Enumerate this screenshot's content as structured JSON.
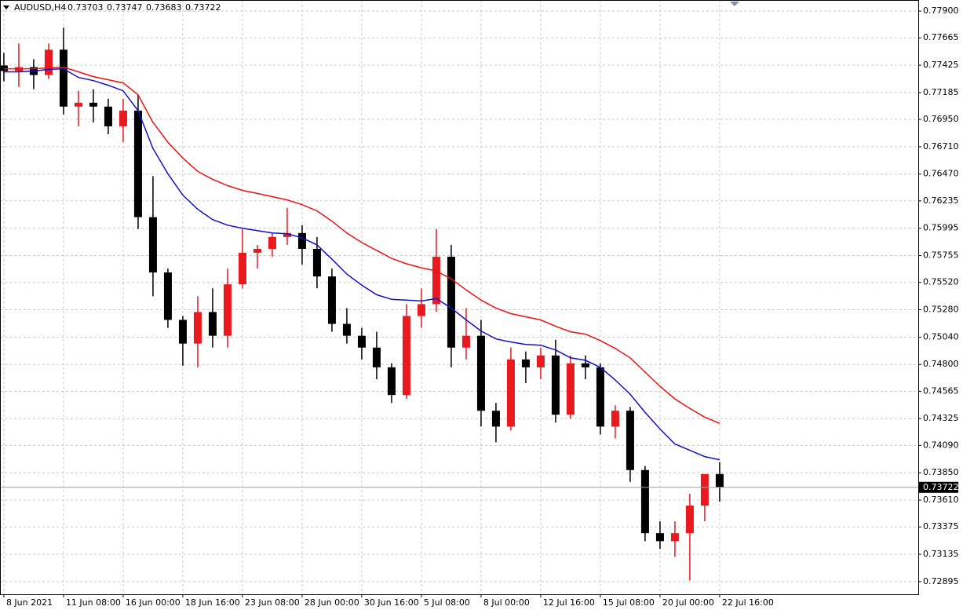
{
  "chart_data": {
    "type": "candlestick",
    "title": "AUDUSD,H4",
    "header_values": [
      0.73703,
      0.73747,
      0.73683,
      0.73722
    ],
    "x": [
      0,
      1,
      2,
      3,
      4,
      5,
      6,
      7,
      8,
      9,
      10,
      11,
      12,
      13,
      14,
      15,
      16,
      17,
      18,
      19,
      20,
      21,
      22,
      23,
      24,
      25,
      26,
      27,
      28,
      29,
      30,
      31,
      32,
      33,
      34,
      35,
      36,
      37,
      38,
      39,
      40,
      41,
      42,
      43,
      44,
      45,
      46,
      47,
      48
    ],
    "open": [
      0.77422,
      0.77374,
      0.77408,
      0.77339,
      0.77561,
      0.77062,
      0.77096,
      0.77062,
      0.76889,
      0.77027,
      0.76092,
      0.75607,
      0.75191,
      0.74983,
      0.7526,
      0.75052,
      0.75503,
      0.7578,
      0.75814,
      0.75918,
      0.75953,
      0.75814,
      0.75572,
      0.75156,
      0.75052,
      0.74948,
      0.74775,
      0.74532,
      0.75225,
      0.75329,
      0.75745,
      0.74948,
      0.75052,
      0.74394,
      0.74255,
      0.74844,
      0.74775,
      0.74879,
      0.74359,
      0.7481,
      0.74775,
      0.74255,
      0.74394,
      0.73874,
      0.7332,
      0.7325,
      0.7332,
      0.73562,
      0.73839
    ],
    "high": [
      0.77533,
      0.77616,
      0.77478,
      0.77616,
      0.77755,
      0.772,
      0.77214,
      0.77131,
      0.77131,
      0.77166,
      0.76452,
      0.75641,
      0.75225,
      0.75399,
      0.75468,
      0.75641,
      0.75988,
      0.75849,
      0.75953,
      0.76175,
      0.76022,
      0.75918,
      0.75641,
      0.75295,
      0.75121,
      0.75087,
      0.7481,
      0.75329,
      0.75468,
      0.75988,
      0.75849,
      0.75295,
      0.75191,
      0.74463,
      0.74948,
      0.74914,
      0.74948,
      0.75017,
      0.74879,
      0.74879,
      0.7481,
      0.74442,
      0.74428,
      0.73909,
      0.73424,
      0.73424,
      0.73666,
      0.73839,
      0.73943
    ],
    "low": [
      0.77284,
      0.77235,
      0.77214,
      0.77304,
      0.76993,
      0.76889,
      0.76923,
      0.76819,
      0.7675,
      0.75988,
      0.75399,
      0.75121,
      0.74789,
      0.74775,
      0.74948,
      0.74948,
      0.75468,
      0.75641,
      0.75745,
      0.75849,
      0.75676,
      0.75468,
      0.75087,
      0.74983,
      0.74844,
      0.74671,
      0.74463,
      0.74498,
      0.75121,
      0.7526,
      0.74775,
      0.74844,
      0.74255,
      0.74117,
      0.74221,
      0.74636,
      0.74671,
      0.7429,
      0.74324,
      0.74671,
      0.74186,
      0.74151,
      0.7377,
      0.7325,
      0.73181,
      0.73112,
      0.72904,
      0.73424,
      0.73597
    ],
    "close": [
      0.77374,
      0.77408,
      0.77339,
      0.77561,
      0.77062,
      0.77096,
      0.77062,
      0.76889,
      0.77027,
      0.76092,
      0.75607,
      0.75191,
      0.74983,
      0.7526,
      0.75052,
      0.75503,
      0.7578,
      0.75814,
      0.75918,
      0.75953,
      0.75814,
      0.75572,
      0.75156,
      0.75052,
      0.74948,
      0.74775,
      0.74532,
      0.75225,
      0.75329,
      0.75745,
      0.74948,
      0.75052,
      0.74394,
      0.74255,
      0.74844,
      0.74775,
      0.74879,
      0.74359,
      0.7481,
      0.74775,
      0.74255,
      0.74394,
      0.73874,
      0.7332,
      0.7325,
      0.7332,
      0.73562,
      0.73839,
      0.73722
    ],
    "up_color": "#e8191f",
    "down_color": "#000000",
    "indicators": [
      {
        "color": "#ee1111",
        "values": [
          0.77394,
          0.77394,
          0.77394,
          0.77401,
          0.77408,
          0.77367,
          0.77325,
          0.77297,
          0.7727,
          0.77166,
          0.76923,
          0.7675,
          0.76611,
          0.76494,
          0.76424,
          0.76369,
          0.76327,
          0.763,
          0.76272,
          0.76244,
          0.76202,
          0.76147,
          0.76057,
          0.75953,
          0.7587,
          0.75801,
          0.75731,
          0.75683,
          0.75648,
          0.7562,
          0.75551,
          0.75454,
          0.75364,
          0.75295,
          0.75246,
          0.75218,
          0.75191,
          0.75135,
          0.75087,
          0.75066,
          0.7501,
          0.74941,
          0.74858,
          0.74733,
          0.74609,
          0.74498,
          0.74415,
          0.74338,
          0.74283
        ]
      },
      {
        "color": "#1111cc",
        "values": [
          0.77367,
          0.77367,
          0.77374,
          0.77388,
          0.77394,
          0.77318,
          0.7729,
          0.77249,
          0.772,
          0.77027,
          0.76695,
          0.76473,
          0.76286,
          0.76161,
          0.76071,
          0.76022,
          0.75995,
          0.75974,
          0.75953,
          0.75946,
          0.75911,
          0.75849,
          0.75724,
          0.75593,
          0.75496,
          0.75412,
          0.75371,
          0.75364,
          0.75357,
          0.75378,
          0.75295,
          0.75191,
          0.75094,
          0.75024,
          0.74997,
          0.74976,
          0.74969,
          0.74927,
          0.74858,
          0.74837,
          0.74775,
          0.74664,
          0.74539,
          0.7438,
          0.74234,
          0.74103,
          0.74047,
          0.73992,
          0.73964
        ]
      }
    ],
    "last_price": 0.73722,
    "xlim": [
      -0.26,
      61.32
    ],
    "xticks": [
      {
        "value": 0,
        "label": "8 Jun 2021"
      },
      {
        "value": 4,
        "label": "11 Jun 08:00"
      },
      {
        "value": 8,
        "label": "16 Jun 00:00"
      },
      {
        "value": 12,
        "label": "18 Jun 16:00"
      },
      {
        "value": 16,
        "label": "23 Jun 08:00"
      },
      {
        "value": 20,
        "label": "28 Jun 00:00"
      },
      {
        "value": 24,
        "label": "30 Jun 16:00"
      },
      {
        "value": 28,
        "label": "5 Jul 08:00"
      },
      {
        "value": 32,
        "label": "8 Jul 00:00"
      },
      {
        "value": 36,
        "label": "12 Jul 16:00"
      },
      {
        "value": 40,
        "label": "15 Jul 08:00"
      },
      {
        "value": 44,
        "label": "20 Jul 00:00"
      },
      {
        "value": 48,
        "label": "22 Jul 16:00"
      }
    ],
    "ylim": [
      0.72784,
      0.77997
    ],
    "yticks": [
      {
        "value": 0.779,
        "label": "0.77900"
      },
      0.77665,
      0.77425,
      0.77185,
      {
        "value": 0.7695,
        "label": "0.76950"
      },
      {
        "value": 0.7671,
        "label": "0.76710"
      },
      {
        "value": 0.7647,
        "label": "0.76470"
      },
      0.76235,
      0.75995,
      0.75755,
      {
        "value": 0.7552,
        "label": "0.75520"
      },
      {
        "value": 0.7528,
        "label": "0.75280"
      },
      {
        "value": 0.7504,
        "label": "0.75040"
      },
      {
        "value": 0.748,
        "label": "0.74800"
      },
      0.74565,
      0.74325,
      {
        "value": 0.7409,
        "label": "0.74090"
      },
      {
        "value": 0.7385,
        "label": "0.73850"
      },
      {
        "value": 0.7361,
        "label": "0.73610"
      },
      0.73375,
      0.73135,
      0.72895
    ],
    "grid": true
  }
}
